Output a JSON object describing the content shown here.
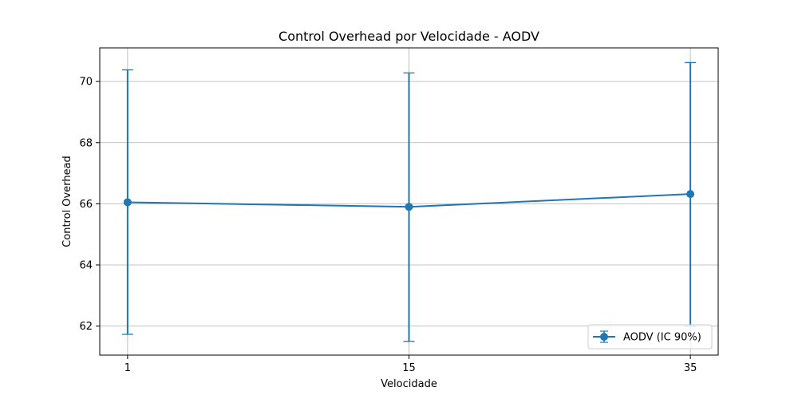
{
  "chart_data": {
    "type": "line",
    "title": "Control Overhead por Velocidade - AODV",
    "xlabel": "Velocidade",
    "ylabel": "Control Overhead",
    "categories": [
      "1",
      "15",
      "35"
    ],
    "series": [
      {
        "name": "AODV (IC 90%)",
        "values": [
          66.05,
          65.9,
          66.32
        ],
        "error_low": [
          61.73,
          61.5,
          62.0
        ],
        "error_high": [
          70.38,
          70.28,
          70.62
        ],
        "color": "#1f77b4",
        "marker": "circle"
      }
    ],
    "ylim": [
      61.05,
      71.1
    ],
    "yticks": [
      62,
      64,
      66,
      68,
      70
    ],
    "grid": true,
    "legend_position": "lower-right"
  }
}
